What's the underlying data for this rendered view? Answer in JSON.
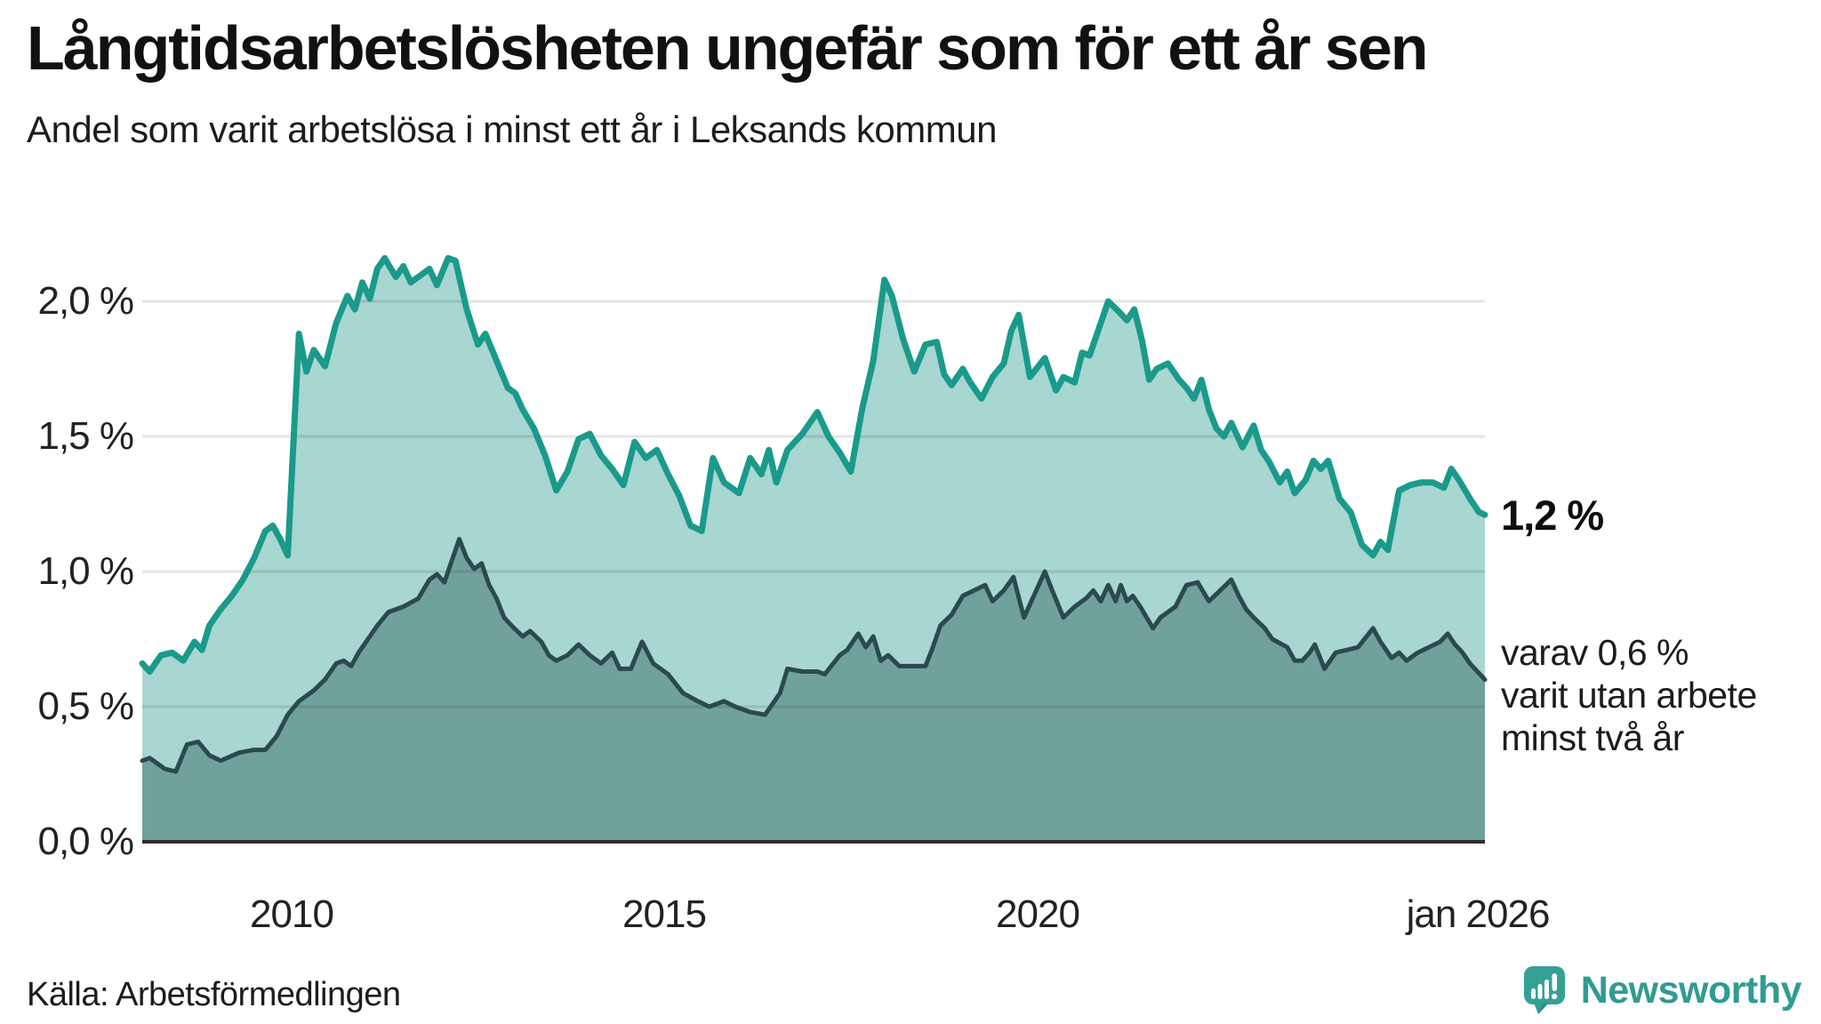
{
  "header": {
    "title": "Långtidsarbetslösheten ungefär som för ett år sen",
    "subtitle": "Andel som varit arbetslösa i minst ett år i Leksands kommun"
  },
  "footer": {
    "source": "Källa: Arbetsförmedlingen",
    "brand_name": "Newsworthy"
  },
  "colors": {
    "background": "#ffffff",
    "line_1yr": "#1a9a8b",
    "fill_1yr": "#a8d6d0",
    "line_2yr": "#2b4a4e",
    "fill_2yr": "#71a19b",
    "gridline": "rgba(0,0,0,0.10)",
    "axis_line": "#2e2e2e",
    "brand_teal": "#2f9c92",
    "brand_icon_bg": "#35a096",
    "brand_icon_shade": "#2a8e85"
  },
  "chart_data": {
    "type": "area",
    "title": "Långtidsarbetslösheten ungefär som för ett år sen",
    "subtitle": "Andel som varit arbetslösa i minst ett år i Leksands kommun",
    "unit": "%",
    "xlim": [
      2008,
      2026
    ],
    "ylim": [
      0,
      2.2
    ],
    "grid": true,
    "x_ticks": [
      {
        "label": "2010",
        "year": 2010
      },
      {
        "label": "2015",
        "year": 2015
      },
      {
        "label": "2020",
        "year": 2020
      },
      {
        "label": "jan 2026",
        "year": 2026
      }
    ],
    "y_ticks": [
      {
        "label": "2,0 %",
        "value": 2.0
      },
      {
        "label": "1,5 %",
        "value": 1.5
      },
      {
        "label": "1,0 %",
        "value": 1.0
      },
      {
        "label": "0,5 %",
        "value": 0.5
      },
      {
        "label": "0,0 %",
        "value": 0.0
      }
    ],
    "series": [
      {
        "id": "unemployed_min_1yr",
        "end_label": "1,2 %",
        "end_value": 1.2,
        "points": [
          [
            2008.0,
            0.66
          ],
          [
            2008.1,
            0.63
          ],
          [
            2008.25,
            0.69
          ],
          [
            2008.4,
            0.7
          ],
          [
            2008.55,
            0.67
          ],
          [
            2008.7,
            0.74
          ],
          [
            2008.8,
            0.71
          ],
          [
            2008.9,
            0.8
          ],
          [
            2009.05,
            0.86
          ],
          [
            2009.2,
            0.91
          ],
          [
            2009.35,
            0.97
          ],
          [
            2009.5,
            1.05
          ],
          [
            2009.65,
            1.15
          ],
          [
            2009.75,
            1.17
          ],
          [
            2009.85,
            1.12
          ],
          [
            2009.95,
            1.06
          ],
          [
            2010.1,
            1.88
          ],
          [
            2010.2,
            1.74
          ],
          [
            2010.3,
            1.82
          ],
          [
            2010.45,
            1.76
          ],
          [
            2010.6,
            1.92
          ],
          [
            2010.75,
            2.02
          ],
          [
            2010.85,
            1.97
          ],
          [
            2010.95,
            2.07
          ],
          [
            2011.05,
            2.01
          ],
          [
            2011.15,
            2.12
          ],
          [
            2011.25,
            2.16
          ],
          [
            2011.4,
            2.09
          ],
          [
            2011.5,
            2.13
          ],
          [
            2011.6,
            2.07
          ],
          [
            2011.75,
            2.1
          ],
          [
            2011.85,
            2.12
          ],
          [
            2011.95,
            2.06
          ],
          [
            2012.1,
            2.16
          ],
          [
            2012.2,
            2.15
          ],
          [
            2012.35,
            1.97
          ],
          [
            2012.5,
            1.84
          ],
          [
            2012.6,
            1.88
          ],
          [
            2012.75,
            1.78
          ],
          [
            2012.9,
            1.68
          ],
          [
            2013.0,
            1.66
          ],
          [
            2013.1,
            1.6
          ],
          [
            2013.25,
            1.53
          ],
          [
            2013.4,
            1.43
          ],
          [
            2013.55,
            1.3
          ],
          [
            2013.7,
            1.37
          ],
          [
            2013.85,
            1.49
          ],
          [
            2014.0,
            1.51
          ],
          [
            2014.15,
            1.43
          ],
          [
            2014.3,
            1.38
          ],
          [
            2014.45,
            1.32
          ],
          [
            2014.6,
            1.48
          ],
          [
            2014.75,
            1.42
          ],
          [
            2014.9,
            1.45
          ],
          [
            2015.05,
            1.36
          ],
          [
            2015.2,
            1.28
          ],
          [
            2015.35,
            1.17
          ],
          [
            2015.5,
            1.15
          ],
          [
            2015.65,
            1.42
          ],
          [
            2015.8,
            1.33
          ],
          [
            2016.0,
            1.29
          ],
          [
            2016.15,
            1.42
          ],
          [
            2016.3,
            1.36
          ],
          [
            2016.4,
            1.45
          ],
          [
            2016.5,
            1.33
          ],
          [
            2016.65,
            1.45
          ],
          [
            2016.85,
            1.51
          ],
          [
            2017.05,
            1.59
          ],
          [
            2017.2,
            1.5
          ],
          [
            2017.35,
            1.44
          ],
          [
            2017.5,
            1.37
          ],
          [
            2017.65,
            1.6
          ],
          [
            2017.8,
            1.78
          ],
          [
            2017.95,
            2.08
          ],
          [
            2018.05,
            2.02
          ],
          [
            2018.2,
            1.86
          ],
          [
            2018.35,
            1.74
          ],
          [
            2018.5,
            1.84
          ],
          [
            2018.65,
            1.85
          ],
          [
            2018.75,
            1.73
          ],
          [
            2018.85,
            1.69
          ],
          [
            2019.0,
            1.75
          ],
          [
            2019.1,
            1.7
          ],
          [
            2019.25,
            1.64
          ],
          [
            2019.4,
            1.72
          ],
          [
            2019.55,
            1.77
          ],
          [
            2019.65,
            1.89
          ],
          [
            2019.75,
            1.95
          ],
          [
            2019.9,
            1.72
          ],
          [
            2020.1,
            1.79
          ],
          [
            2020.25,
            1.67
          ],
          [
            2020.35,
            1.72
          ],
          [
            2020.5,
            1.7
          ],
          [
            2020.6,
            1.81
          ],
          [
            2020.7,
            1.8
          ],
          [
            2020.8,
            1.88
          ],
          [
            2020.95,
            2.0
          ],
          [
            2021.1,
            1.96
          ],
          [
            2021.2,
            1.93
          ],
          [
            2021.3,
            1.97
          ],
          [
            2021.4,
            1.86
          ],
          [
            2021.5,
            1.71
          ],
          [
            2021.6,
            1.75
          ],
          [
            2021.75,
            1.77
          ],
          [
            2021.9,
            1.71
          ],
          [
            2022.0,
            1.68
          ],
          [
            2022.1,
            1.64
          ],
          [
            2022.2,
            1.71
          ],
          [
            2022.3,
            1.6
          ],
          [
            2022.4,
            1.53
          ],
          [
            2022.5,
            1.5
          ],
          [
            2022.6,
            1.55
          ],
          [
            2022.75,
            1.46
          ],
          [
            2022.9,
            1.54
          ],
          [
            2023.0,
            1.45
          ],
          [
            2023.1,
            1.41
          ],
          [
            2023.25,
            1.33
          ],
          [
            2023.35,
            1.37
          ],
          [
            2023.45,
            1.29
          ],
          [
            2023.6,
            1.34
          ],
          [
            2023.7,
            1.41
          ],
          [
            2023.8,
            1.38
          ],
          [
            2023.9,
            1.41
          ],
          [
            2024.05,
            1.27
          ],
          [
            2024.2,
            1.22
          ],
          [
            2024.35,
            1.1
          ],
          [
            2024.5,
            1.06
          ],
          [
            2024.6,
            1.11
          ],
          [
            2024.7,
            1.08
          ],
          [
            2024.85,
            1.3
          ],
          [
            2025.0,
            1.32
          ],
          [
            2025.15,
            1.33
          ],
          [
            2025.3,
            1.33
          ],
          [
            2025.45,
            1.31
          ],
          [
            2025.55,
            1.38
          ],
          [
            2025.65,
            1.34
          ],
          [
            2025.8,
            1.27
          ],
          [
            2025.92,
            1.22
          ],
          [
            2026.0,
            1.21
          ]
        ]
      },
      {
        "id": "unemployed_min_2yr",
        "end_label_lines": [
          "varav 0,6 %",
          "varit utan arbete",
          "minst två år"
        ],
        "end_value": 0.6,
        "points": [
          [
            2008.0,
            0.3
          ],
          [
            2008.1,
            0.31
          ],
          [
            2008.3,
            0.27
          ],
          [
            2008.45,
            0.26
          ],
          [
            2008.6,
            0.36
          ],
          [
            2008.75,
            0.37
          ],
          [
            2008.9,
            0.32
          ],
          [
            2009.05,
            0.3
          ],
          [
            2009.3,
            0.33
          ],
          [
            2009.5,
            0.34
          ],
          [
            2009.65,
            0.34
          ],
          [
            2009.8,
            0.39
          ],
          [
            2009.95,
            0.47
          ],
          [
            2010.1,
            0.52
          ],
          [
            2010.3,
            0.56
          ],
          [
            2010.45,
            0.6
          ],
          [
            2010.6,
            0.66
          ],
          [
            2010.7,
            0.67
          ],
          [
            2010.8,
            0.65
          ],
          [
            2010.9,
            0.7
          ],
          [
            2011.05,
            0.76
          ],
          [
            2011.15,
            0.8
          ],
          [
            2011.3,
            0.85
          ],
          [
            2011.5,
            0.87
          ],
          [
            2011.7,
            0.9
          ],
          [
            2011.85,
            0.97
          ],
          [
            2011.95,
            0.99
          ],
          [
            2012.05,
            0.96
          ],
          [
            2012.25,
            1.12
          ],
          [
            2012.35,
            1.05
          ],
          [
            2012.45,
            1.01
          ],
          [
            2012.55,
            1.03
          ],
          [
            2012.65,
            0.95
          ],
          [
            2012.75,
            0.9
          ],
          [
            2012.85,
            0.83
          ],
          [
            2012.95,
            0.8
          ],
          [
            2013.1,
            0.76
          ],
          [
            2013.2,
            0.78
          ],
          [
            2013.35,
            0.74
          ],
          [
            2013.45,
            0.69
          ],
          [
            2013.55,
            0.67
          ],
          [
            2013.7,
            0.69
          ],
          [
            2013.85,
            0.73
          ],
          [
            2014.0,
            0.69
          ],
          [
            2014.15,
            0.66
          ],
          [
            2014.3,
            0.7
          ],
          [
            2014.4,
            0.64
          ],
          [
            2014.55,
            0.64
          ],
          [
            2014.7,
            0.74
          ],
          [
            2014.85,
            0.66
          ],
          [
            2015.05,
            0.62
          ],
          [
            2015.25,
            0.55
          ],
          [
            2015.45,
            0.52
          ],
          [
            2015.6,
            0.5
          ],
          [
            2015.8,
            0.52
          ],
          [
            2015.95,
            0.5
          ],
          [
            2016.15,
            0.48
          ],
          [
            2016.35,
            0.47
          ],
          [
            2016.55,
            0.55
          ],
          [
            2016.65,
            0.64
          ],
          [
            2016.85,
            0.63
          ],
          [
            2017.05,
            0.63
          ],
          [
            2017.15,
            0.62
          ],
          [
            2017.35,
            0.69
          ],
          [
            2017.45,
            0.71
          ],
          [
            2017.6,
            0.77
          ],
          [
            2017.7,
            0.72
          ],
          [
            2017.8,
            0.76
          ],
          [
            2017.9,
            0.67
          ],
          [
            2018.0,
            0.69
          ],
          [
            2018.15,
            0.65
          ],
          [
            2018.35,
            0.65
          ],
          [
            2018.5,
            0.65
          ],
          [
            2018.6,
            0.72
          ],
          [
            2018.7,
            0.8
          ],
          [
            2018.85,
            0.84
          ],
          [
            2019.0,
            0.91
          ],
          [
            2019.15,
            0.93
          ],
          [
            2019.3,
            0.95
          ],
          [
            2019.4,
            0.89
          ],
          [
            2019.55,
            0.93
          ],
          [
            2019.68,
            0.98
          ],
          [
            2019.82,
            0.83
          ],
          [
            2020.1,
            1.0
          ],
          [
            2020.2,
            0.93
          ],
          [
            2020.35,
            0.83
          ],
          [
            2020.5,
            0.87
          ],
          [
            2020.65,
            0.9
          ],
          [
            2020.75,
            0.93
          ],
          [
            2020.85,
            0.89
          ],
          [
            2020.95,
            0.95
          ],
          [
            2021.05,
            0.89
          ],
          [
            2021.12,
            0.95
          ],
          [
            2021.2,
            0.89
          ],
          [
            2021.28,
            0.91
          ],
          [
            2021.38,
            0.87
          ],
          [
            2021.55,
            0.79
          ],
          [
            2021.65,
            0.83
          ],
          [
            2021.85,
            0.87
          ],
          [
            2022.0,
            0.95
          ],
          [
            2022.15,
            0.96
          ],
          [
            2022.3,
            0.89
          ],
          [
            2022.45,
            0.93
          ],
          [
            2022.6,
            0.97
          ],
          [
            2022.7,
            0.91
          ],
          [
            2022.8,
            0.86
          ],
          [
            2022.9,
            0.83
          ],
          [
            2023.05,
            0.79
          ],
          [
            2023.15,
            0.75
          ],
          [
            2023.35,
            0.72
          ],
          [
            2023.45,
            0.67
          ],
          [
            2023.55,
            0.67
          ],
          [
            2023.65,
            0.7
          ],
          [
            2023.72,
            0.73
          ],
          [
            2023.85,
            0.64
          ],
          [
            2024.0,
            0.7
          ],
          [
            2024.15,
            0.71
          ],
          [
            2024.3,
            0.72
          ],
          [
            2024.5,
            0.79
          ],
          [
            2024.6,
            0.74
          ],
          [
            2024.75,
            0.68
          ],
          [
            2024.85,
            0.7
          ],
          [
            2024.95,
            0.67
          ],
          [
            2025.1,
            0.7
          ],
          [
            2025.25,
            0.72
          ],
          [
            2025.4,
            0.74
          ],
          [
            2025.5,
            0.77
          ],
          [
            2025.6,
            0.73
          ],
          [
            2025.7,
            0.7
          ],
          [
            2025.8,
            0.66
          ],
          [
            2025.9,
            0.63
          ],
          [
            2026.0,
            0.6
          ]
        ]
      }
    ]
  }
}
